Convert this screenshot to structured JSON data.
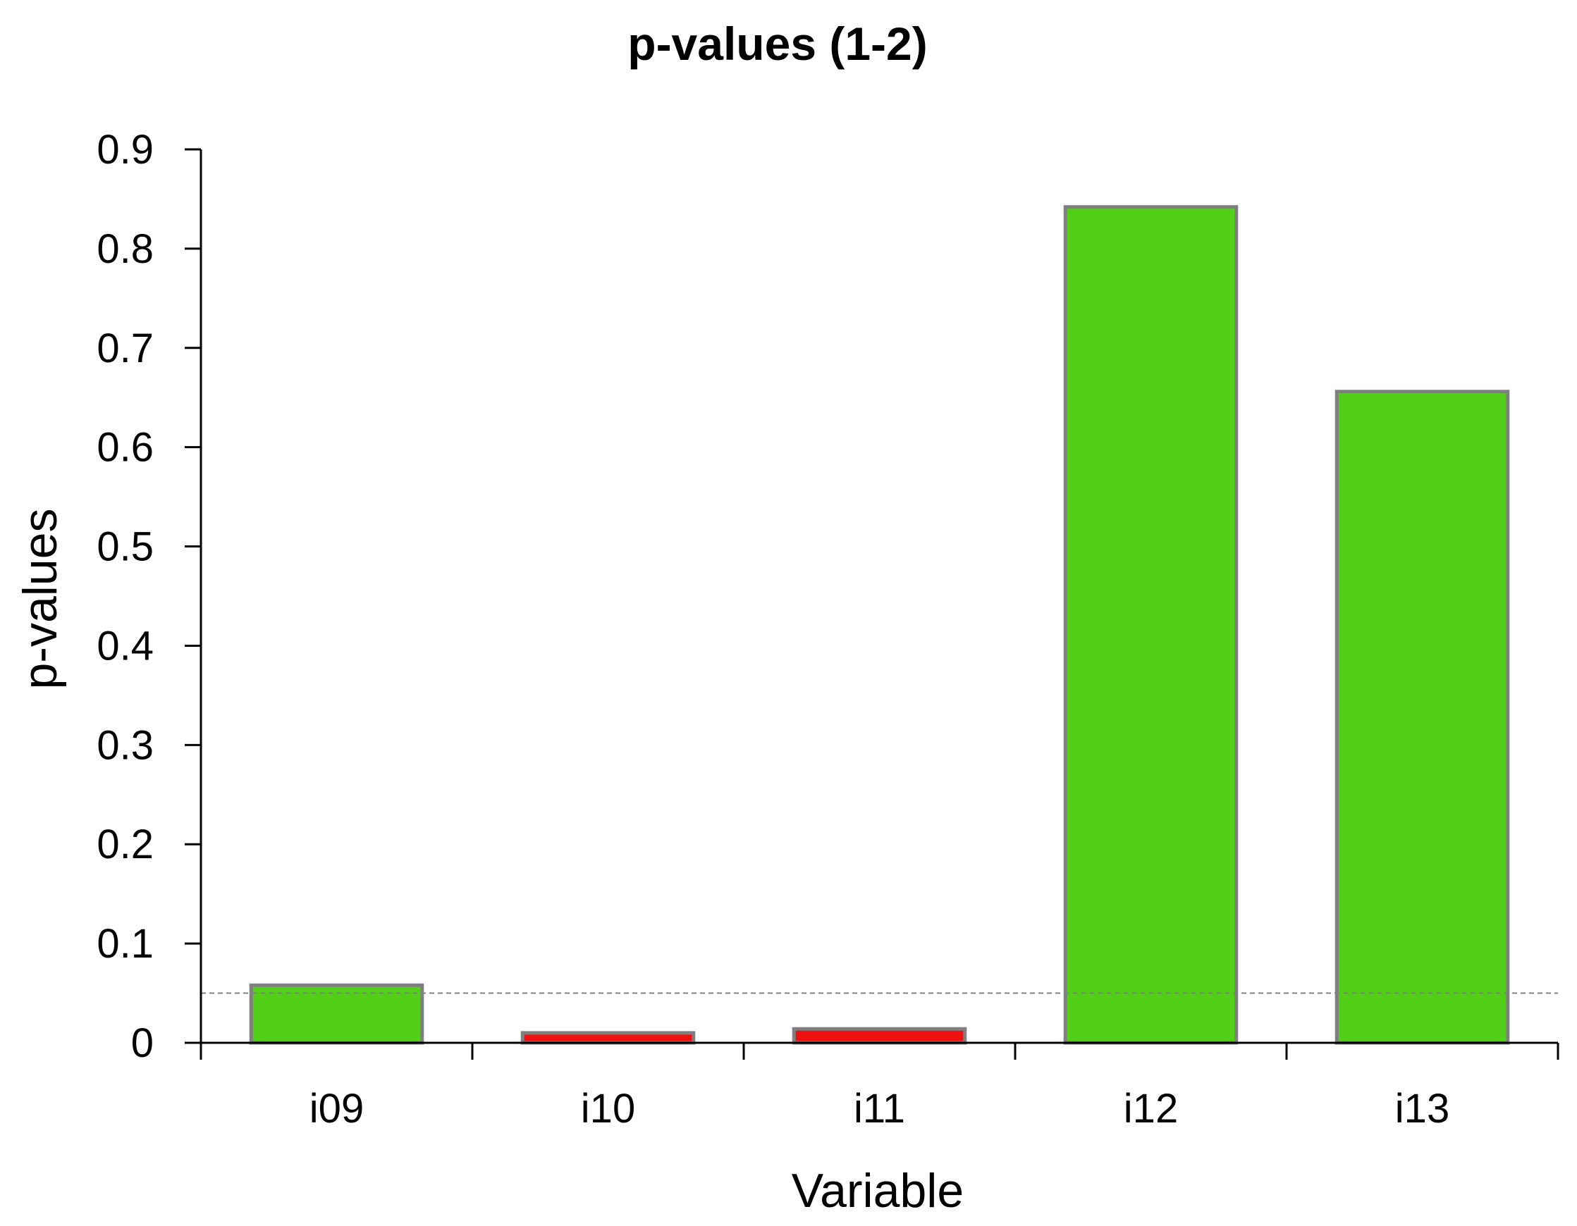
{
  "chart_data": {
    "type": "bar",
    "title": "p-values (1-2)",
    "xlabel": "Variable",
    "ylabel": "p-values",
    "categories": [
      "i09",
      "i10",
      "i11",
      "i12",
      "i13"
    ],
    "values": [
      0.058,
      0.01,
      0.014,
      0.842,
      0.656
    ],
    "ylim": [
      0,
      0.9
    ],
    "yticks": [
      "0",
      "0.1",
      "0.2",
      "0.3",
      "0.4",
      "0.5",
      "0.6",
      "0.7",
      "0.8",
      "0.9"
    ],
    "reference_line": 0.05,
    "grid": false,
    "legend": "none",
    "colors": {
      "above_threshold": "#52d017",
      "below_threshold": "#ee1111",
      "bar_border": "#7f7f7f",
      "reference_line": "#808080"
    }
  }
}
